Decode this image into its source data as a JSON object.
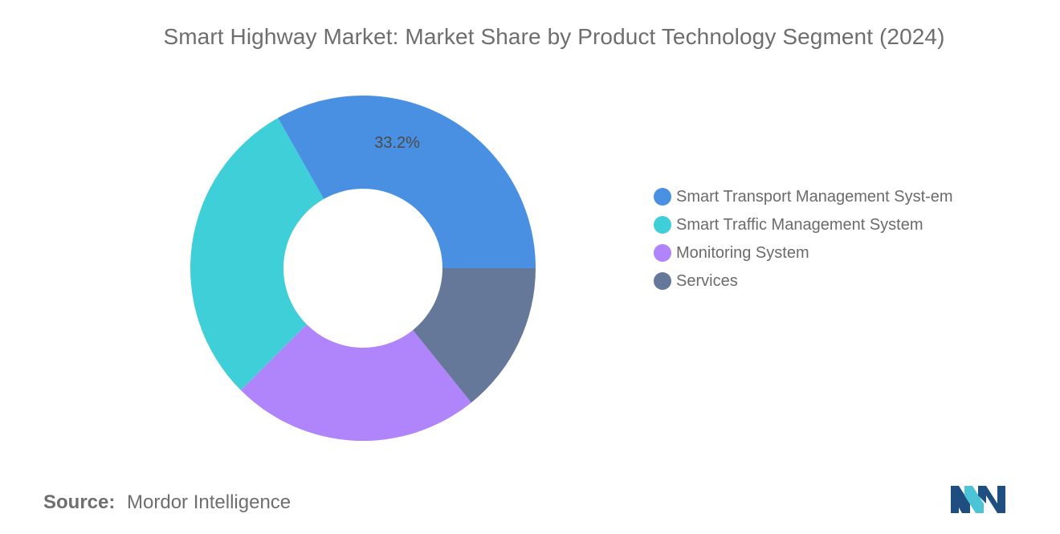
{
  "chart_data": {
    "type": "pie",
    "title": "Smart Highway Market: Market Share by Product Technology Segment (2024)",
    "series": [
      {
        "name": "Smart Transport Management System",
        "value": 33.2,
        "label": "33.2%",
        "color": "#4a90e2"
      },
      {
        "name": "Smart Traffic Management System",
        "value": 29.3,
        "color": "#3fcfd8"
      },
      {
        "name": "Monitoring System",
        "value": 23.3,
        "color": "#b084fb"
      },
      {
        "name": "Services",
        "value": 14.2,
        "color": "#66789a"
      }
    ],
    "legend_position": "right",
    "donut": true
  },
  "legend_items": [
    {
      "label": "Smart Transport Management Syst-em"
    },
    {
      "label": "Smart Traffic Management System"
    },
    {
      "label": "Monitoring System"
    },
    {
      "label": "Services"
    }
  ],
  "footer": {
    "source_label": "Source:",
    "source_value": "Mordor Intelligence"
  },
  "logo": {
    "icon": "mordor-intelligence-logo",
    "color_dark": "#1e4f80",
    "color_light": "#4dc3d6"
  }
}
